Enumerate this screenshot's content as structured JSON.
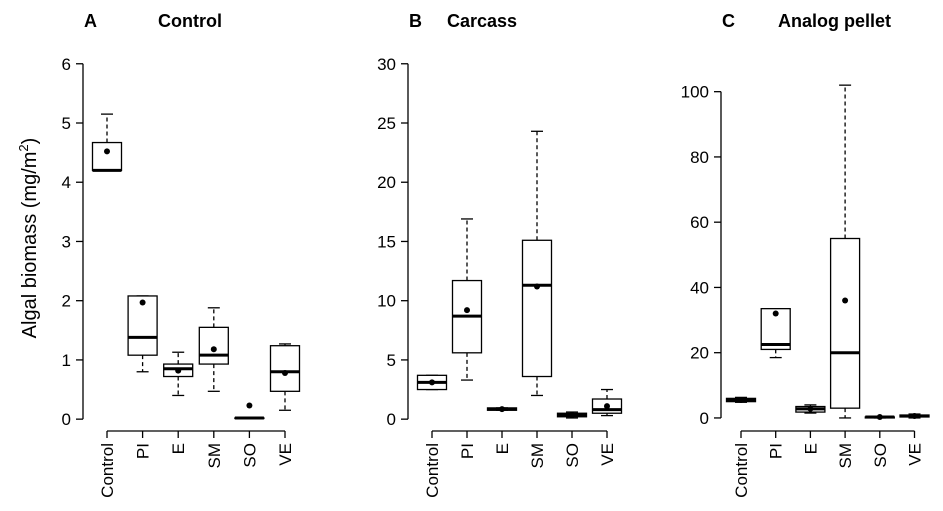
{
  "chart_data": [
    {
      "type": "box",
      "panel_letter": "A",
      "title": "Control",
      "ylabel": "Algal biomass (mg/m",
      "ylabel_sup": "2",
      "ylabel_close": ")",
      "ylim": [
        -0.2,
        6.3
      ],
      "yticks": [
        0,
        1,
        2,
        3,
        4,
        5,
        6
      ],
      "categories": [
        "Control",
        "PI",
        "E",
        "SM",
        "SO",
        "VE"
      ],
      "boxes": [
        {
          "min": 4.2,
          "q1": 4.2,
          "median": 4.2,
          "q3": 4.67,
          "max": 5.15,
          "mean": 4.52
        },
        {
          "min": 0.8,
          "q1": 1.08,
          "median": 1.38,
          "q3": 2.08,
          "max": 2.08,
          "mean": 1.97
        },
        {
          "min": 0.4,
          "q1": 0.72,
          "median": 0.85,
          "q3": 0.93,
          "max": 1.13,
          "mean": 0.82
        },
        {
          "min": 0.47,
          "q1": 0.93,
          "median": 1.08,
          "q3": 1.55,
          "max": 1.88,
          "mean": 1.18
        },
        {
          "min": 0.02,
          "q1": 0.02,
          "median": 0.02,
          "q3": 0.02,
          "max": 0.02,
          "mean": 0.23
        },
        {
          "min": 0.15,
          "q1": 0.47,
          "median": 0.8,
          "q3": 1.24,
          "max": 1.27,
          "mean": 0.78
        }
      ]
    },
    {
      "type": "box",
      "panel_letter": "B",
      "title": "Carcass",
      "ylabel": "",
      "ylim": [
        -1,
        31.5
      ],
      "yticks": [
        0,
        5,
        10,
        15,
        20,
        25,
        30
      ],
      "categories": [
        "Control",
        "PI",
        "E",
        "SM",
        "SO",
        "VE"
      ],
      "boxes": [
        {
          "min": 2.5,
          "q1": 2.5,
          "median": 3.1,
          "q3": 3.7,
          "max": 3.7,
          "mean": 3.1
        },
        {
          "min": 3.3,
          "q1": 5.6,
          "median": 8.7,
          "q3": 11.7,
          "max": 16.9,
          "mean": 9.2
        },
        {
          "min": 0.75,
          "q1": 0.75,
          "median": 0.85,
          "q3": 0.95,
          "max": 0.95,
          "mean": 0.85
        },
        {
          "min": 2.0,
          "q1": 3.6,
          "median": 11.3,
          "q3": 15.1,
          "max": 24.3,
          "mean": 11.2
        },
        {
          "min": 0.1,
          "q1": 0.2,
          "median": 0.35,
          "q3": 0.5,
          "max": 0.6,
          "mean": 0.35
        },
        {
          "min": 0.3,
          "q1": 0.5,
          "median": 0.8,
          "q3": 1.7,
          "max": 2.5,
          "mean": 1.1
        }
      ]
    },
    {
      "type": "box",
      "panel_letter": "C",
      "title": "Analog pellet",
      "ylabel": "",
      "ylim": [
        -4,
        114
      ],
      "yticks": [
        0,
        20,
        40,
        60,
        80,
        100
      ],
      "categories": [
        "Control",
        "PI",
        "E",
        "SM",
        "SO",
        "VE"
      ],
      "boxes": [
        {
          "min": 4.8,
          "q1": 5.0,
          "median": 5.5,
          "q3": 6.0,
          "max": 6.3,
          "mean": 5.5
        },
        {
          "min": 18.5,
          "q1": 21.0,
          "median": 22.5,
          "q3": 33.5,
          "max": 33.5,
          "mean": 32.0
        },
        {
          "min": 1.5,
          "q1": 1.8,
          "median": 2.8,
          "q3": 3.5,
          "max": 4.0,
          "mean": 2.8
        },
        {
          "min": 0,
          "q1": 3.0,
          "median": 20.0,
          "q3": 55.0,
          "max": 102,
          "mean": 36.0
        },
        {
          "min": 0,
          "q1": 0,
          "median": 0.3,
          "q3": 0.3,
          "max": 0.3,
          "mean": 0.3
        },
        {
          "min": 0,
          "q1": 0.3,
          "median": 0.6,
          "q3": 0.9,
          "max": 1.2,
          "mean": 0.6
        }
      ]
    }
  ]
}
